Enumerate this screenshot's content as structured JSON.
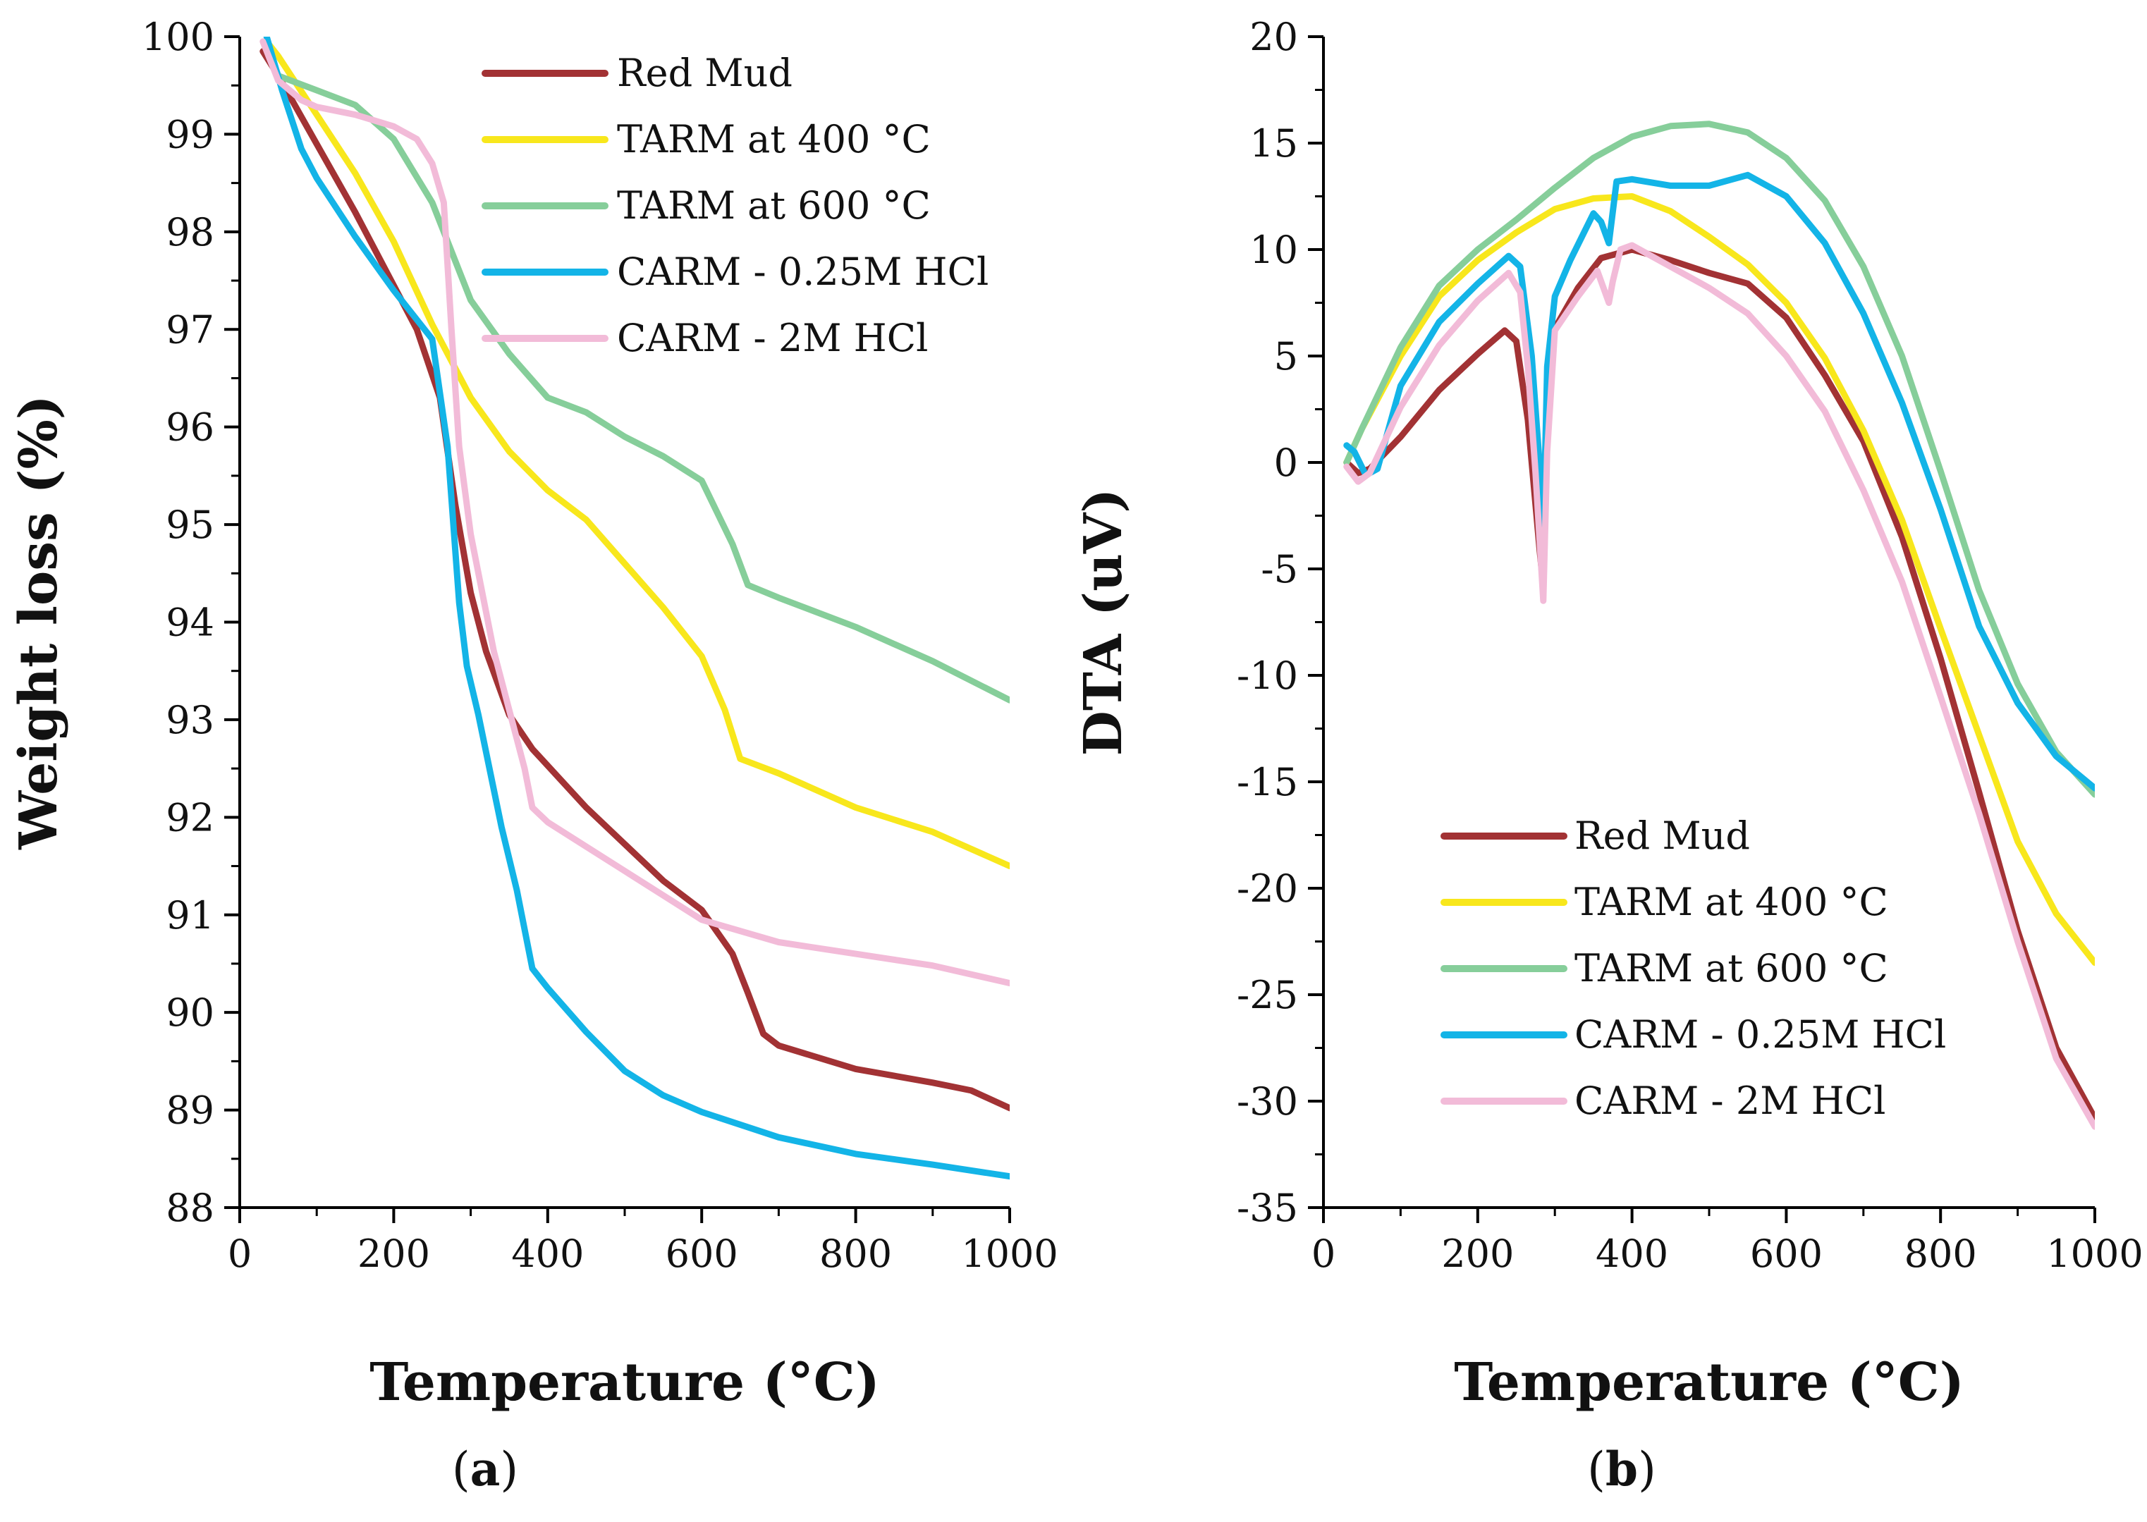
{
  "chart_data": [
    {
      "type": "line",
      "panel_label": {
        "open": "(",
        "letter": "a",
        "close": ")"
      },
      "xlabel": "Temperature (°C)",
      "ylabel": "Weight loss (%)",
      "xlim": [
        0,
        1000
      ],
      "ylim": [
        88,
        100
      ],
      "xticks": [
        0,
        200,
        400,
        600,
        800,
        1000
      ],
      "yticks": [
        88,
        89,
        90,
        91,
        92,
        93,
        94,
        95,
        96,
        97,
        98,
        99,
        100
      ],
      "legend_position": "top-right",
      "series": [
        {
          "name": "Red Mud",
          "color": "#A23234",
          "x": [
            30,
            50,
            100,
            150,
            200,
            230,
            260,
            280,
            300,
            320,
            350,
            380,
            450,
            550,
            600,
            640,
            660,
            680,
            700,
            800,
            900,
            950,
            1000
          ],
          "y": [
            99.85,
            99.6,
            98.9,
            98.2,
            97.45,
            97.0,
            96.3,
            95.2,
            94.3,
            93.7,
            93.05,
            92.7,
            92.1,
            91.35,
            91.05,
            90.6,
            90.2,
            89.78,
            89.66,
            89.42,
            89.28,
            89.2,
            89.02
          ]
        },
        {
          "name": "TARM at 400 °C",
          "color": "#F8E71C",
          "x": [
            35,
            50,
            100,
            150,
            200,
            250,
            300,
            350,
            400,
            450,
            500,
            550,
            600,
            630,
            650,
            700,
            800,
            900,
            1000
          ],
          "y": [
            99.95,
            99.8,
            99.2,
            98.6,
            97.9,
            97.05,
            96.3,
            95.75,
            95.35,
            95.05,
            94.6,
            94.15,
            93.65,
            93.1,
            92.6,
            92.45,
            92.1,
            91.85,
            91.5
          ]
        },
        {
          "name": "TARM at 600 °C",
          "color": "#86CE9A",
          "x": [
            35,
            50,
            100,
            150,
            200,
            250,
            300,
            350,
            400,
            450,
            500,
            550,
            600,
            640,
            660,
            700,
            800,
            900,
            1000
          ],
          "y": [
            99.95,
            99.6,
            99.45,
            99.3,
            98.95,
            98.3,
            97.3,
            96.75,
            96.3,
            96.15,
            95.9,
            95.7,
            95.45,
            94.8,
            94.38,
            94.25,
            93.95,
            93.6,
            93.2
          ]
        },
        {
          "name": "CARM - 0.25M HCl",
          "color": "#13B4E7",
          "x": [
            35,
            55,
            80,
            100,
            150,
            200,
            250,
            270,
            285,
            295,
            310,
            340,
            360,
            380,
            400,
            450,
            500,
            550,
            600,
            700,
            800,
            900,
            1000
          ],
          "y": [
            100.0,
            99.45,
            98.85,
            98.55,
            97.95,
            97.4,
            96.9,
            95.8,
            94.2,
            93.55,
            93.05,
            91.9,
            91.25,
            90.45,
            90.25,
            89.8,
            89.4,
            89.15,
            88.98,
            88.72,
            88.55,
            88.44,
            88.32
          ]
        },
        {
          "name": "CARM - 2M HCl",
          "color": "#F2BBD8",
          "x": [
            30,
            50,
            80,
            100,
            150,
            200,
            230,
            250,
            265,
            275,
            285,
            300,
            330,
            350,
            370,
            380,
            400,
            450,
            500,
            600,
            700,
            800,
            900,
            1000
          ],
          "y": [
            99.95,
            99.55,
            99.35,
            99.28,
            99.2,
            99.08,
            98.95,
            98.7,
            98.3,
            97.0,
            95.8,
            94.9,
            93.7,
            93.1,
            92.5,
            92.1,
            91.95,
            91.7,
            91.45,
            90.95,
            90.72,
            90.6,
            90.48,
            90.3
          ]
        }
      ]
    },
    {
      "type": "line",
      "panel_label": {
        "open": "(",
        "letter": "b",
        "close": ")"
      },
      "xlabel": "Temperature (°C)",
      "ylabel": "DTA (uV)",
      "xlim": [
        0,
        1000
      ],
      "ylim": [
        -35,
        20
      ],
      "xticks": [
        0,
        200,
        400,
        600,
        800,
        1000
      ],
      "yticks": [
        -35,
        -30,
        -25,
        -20,
        -15,
        -10,
        -5,
        0,
        5,
        10,
        15,
        20
      ],
      "legend_position": "bottom-left",
      "series": [
        {
          "name": "Red Mud",
          "color": "#A23234",
          "x": [
            30,
            45,
            60,
            100,
            150,
            200,
            235,
            250,
            265,
            280,
            285,
            290,
            300,
            330,
            360,
            400,
            450,
            500,
            550,
            600,
            650,
            700,
            750,
            800,
            850,
            900,
            950,
            1000
          ],
          "y": [
            0.0,
            -0.5,
            -0.3,
            1.2,
            3.4,
            5.1,
            6.2,
            5.7,
            2.0,
            -4.0,
            -5.8,
            3.0,
            6.3,
            8.2,
            9.6,
            10.0,
            9.5,
            8.9,
            8.4,
            6.8,
            4.1,
            1.0,
            -3.5,
            -9.2,
            -15.5,
            -22.0,
            -27.5,
            -30.8
          ]
        },
        {
          "name": "TARM at 400 °C",
          "color": "#F8E71C",
          "x": [
            30,
            50,
            100,
            150,
            200,
            250,
            300,
            350,
            400,
            450,
            500,
            550,
            600,
            650,
            700,
            750,
            800,
            850,
            900,
            950,
            1000
          ],
          "y": [
            0.0,
            1.6,
            5.0,
            7.8,
            9.5,
            10.8,
            11.9,
            12.4,
            12.5,
            11.8,
            10.6,
            9.3,
            7.5,
            4.9,
            1.5,
            -2.7,
            -7.8,
            -12.8,
            -17.8,
            -21.2,
            -23.5
          ]
        },
        {
          "name": "TARM at 600 °C",
          "color": "#86CE9A",
          "x": [
            30,
            50,
            100,
            150,
            200,
            250,
            300,
            350,
            400,
            450,
            500,
            550,
            600,
            650,
            700,
            750,
            800,
            850,
            900,
            950,
            1000
          ],
          "y": [
            0.0,
            1.6,
            5.4,
            8.3,
            10.0,
            11.4,
            12.9,
            14.3,
            15.3,
            15.8,
            15.9,
            15.5,
            14.3,
            12.3,
            9.2,
            5.0,
            -0.4,
            -6.0,
            -10.4,
            -13.6,
            -15.6
          ]
        },
        {
          "name": "CARM - 0.25M HCl",
          "color": "#13B4E7",
          "x": [
            30,
            40,
            55,
            70,
            100,
            150,
            200,
            240,
            255,
            270,
            280,
            285,
            290,
            300,
            320,
            350,
            360,
            370,
            380,
            400,
            450,
            500,
            550,
            600,
            650,
            700,
            750,
            800,
            850,
            900,
            950,
            1000
          ],
          "y": [
            0.8,
            0.5,
            -0.6,
            -0.3,
            3.6,
            6.6,
            8.4,
            9.7,
            9.2,
            5.0,
            0.0,
            -3.5,
            4.5,
            7.8,
            9.5,
            11.7,
            11.3,
            10.3,
            13.2,
            13.3,
            13.0,
            13.0,
            13.5,
            12.5,
            10.3,
            7.0,
            2.8,
            -2.2,
            -7.7,
            -11.3,
            -13.8,
            -15.3
          ]
        },
        {
          "name": "CARM - 2M HCl",
          "color": "#F2BBD8",
          "x": [
            30,
            45,
            60,
            100,
            150,
            200,
            240,
            255,
            265,
            275,
            285,
            290,
            300,
            330,
            355,
            370,
            375,
            385,
            400,
            450,
            500,
            550,
            600,
            650,
            700,
            750,
            800,
            850,
            900,
            950,
            1000
          ],
          "y": [
            -0.2,
            -0.9,
            -0.5,
            2.6,
            5.5,
            7.6,
            8.9,
            8.0,
            4.5,
            -0.5,
            -6.5,
            0.5,
            6.2,
            7.8,
            9.0,
            7.5,
            8.5,
            10.0,
            10.2,
            9.2,
            8.2,
            7.0,
            5.0,
            2.4,
            -1.3,
            -5.6,
            -11.0,
            -16.5,
            -22.5,
            -28.0,
            -31.2
          ]
        }
      ]
    }
  ]
}
